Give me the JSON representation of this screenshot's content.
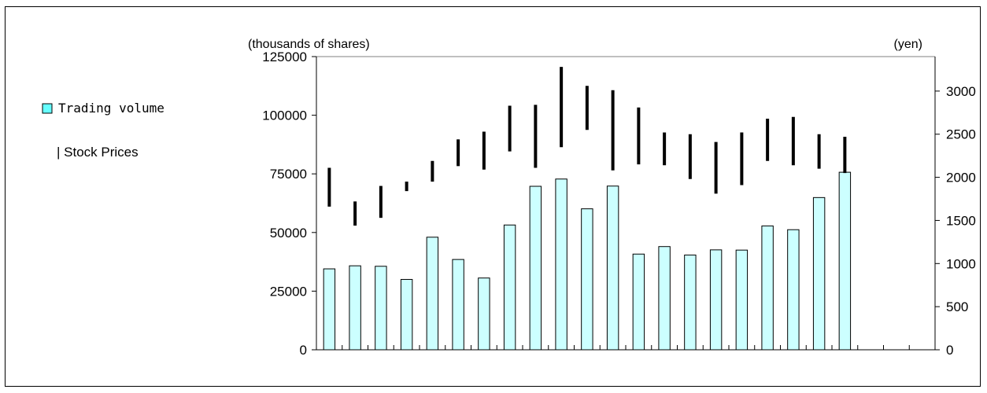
{
  "chart_data": {
    "type": "bar",
    "left_axis_unit": "(thousands of shares)",
    "right_axis_unit": "(yen)",
    "left_axis_ticks": [
      "125000",
      "100000",
      "75000",
      "50000",
      "25000",
      "0"
    ],
    "right_axis_ticks": [
      "3000",
      "2500",
      "2000",
      "1500",
      "1000",
      "500",
      "0"
    ],
    "ylim_left": [
      0,
      125000
    ],
    "ylim_right": [
      0,
      3400
    ],
    "category_count": 24,
    "grid": false,
    "legend_position": "left",
    "legend": {
      "volume_label": "Trading volume",
      "price_label": "| Stock Prices"
    },
    "series": [
      {
        "name": "Trading volume",
        "type": "bar",
        "axis": "left",
        "color": "#ccffff",
        "values": [
          34500,
          35800,
          35600,
          30000,
          48000,
          38500,
          30600,
          53200,
          69700,
          72800,
          60100,
          69800,
          40800,
          44000,
          40400,
          42600,
          42500,
          52800,
          51200,
          64900,
          75700
        ]
      },
      {
        "name": "Stock Prices",
        "type": "range",
        "axis": "right",
        "color": "#000000",
        "low": [
          1660,
          1440,
          1530,
          1840,
          1950,
          2130,
          2090,
          2300,
          2110,
          2350,
          2550,
          2080,
          2150,
          2140,
          1980,
          1810,
          1910,
          2190,
          2140,
          2100,
          2050
        ],
        "high": [
          2110,
          1720,
          1900,
          1950,
          2190,
          2440,
          2530,
          2830,
          2840,
          3280,
          3060,
          3010,
          2810,
          2520,
          2500,
          2410,
          2520,
          2680,
          2700,
          2500,
          2470
        ]
      }
    ]
  }
}
